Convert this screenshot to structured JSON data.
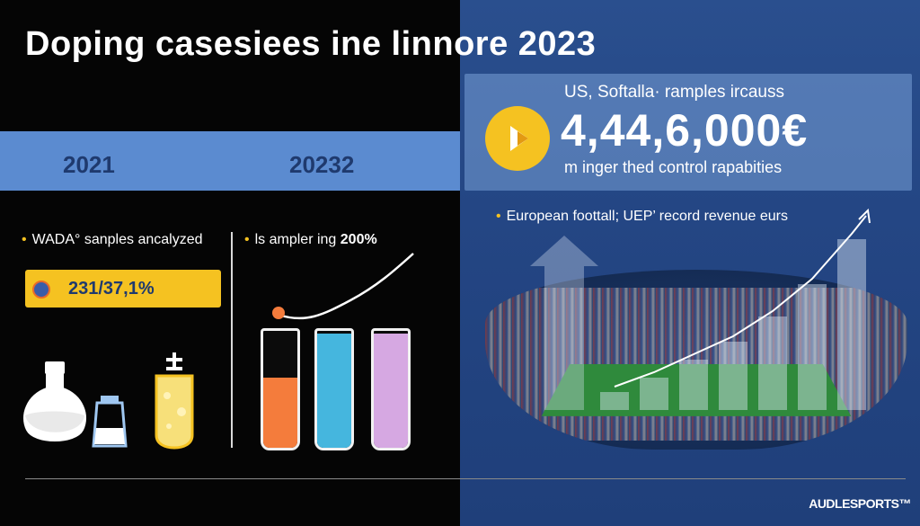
{
  "header": {
    "title": "Doping casesiees ine linnore 2023"
  },
  "years": {
    "left": "2021",
    "right": "20232"
  },
  "left_section": {
    "bullet": "WADA° sanples ancalyzed",
    "stat_value": "231/37,1%",
    "icons": [
      "flask-icon",
      "beaker-icon",
      "test-tube-icon"
    ]
  },
  "middle_section": {
    "bullet_prefix": "ls ampler ing",
    "bullet_highlight": "200%",
    "tubes": [
      {
        "color": "#f47c3c",
        "fill": 0.6
      },
      {
        "color": "#45b6de",
        "fill": 0.98
      },
      {
        "color": "#d6a8e2",
        "fill": 0.98
      }
    ]
  },
  "info_card": {
    "headline": "US, Softalla· ramples ircauss",
    "big_number": "4,44,6,000€",
    "subline": "m inger thed control rapabities"
  },
  "right_section": {
    "bullet": "European foottall; UEP’ record revenue eurs",
    "bar_levels": [
      0.1,
      0.18,
      0.28,
      0.38,
      0.52,
      0.7,
      0.95
    ]
  },
  "footer": {
    "brand": "AUDLESPORTS™"
  },
  "colors": {
    "accent_yellow": "#f5c221",
    "band_blue": "#5b8bd0",
    "panel_blue": "#244684",
    "year_text": "#1f3a6e"
  }
}
